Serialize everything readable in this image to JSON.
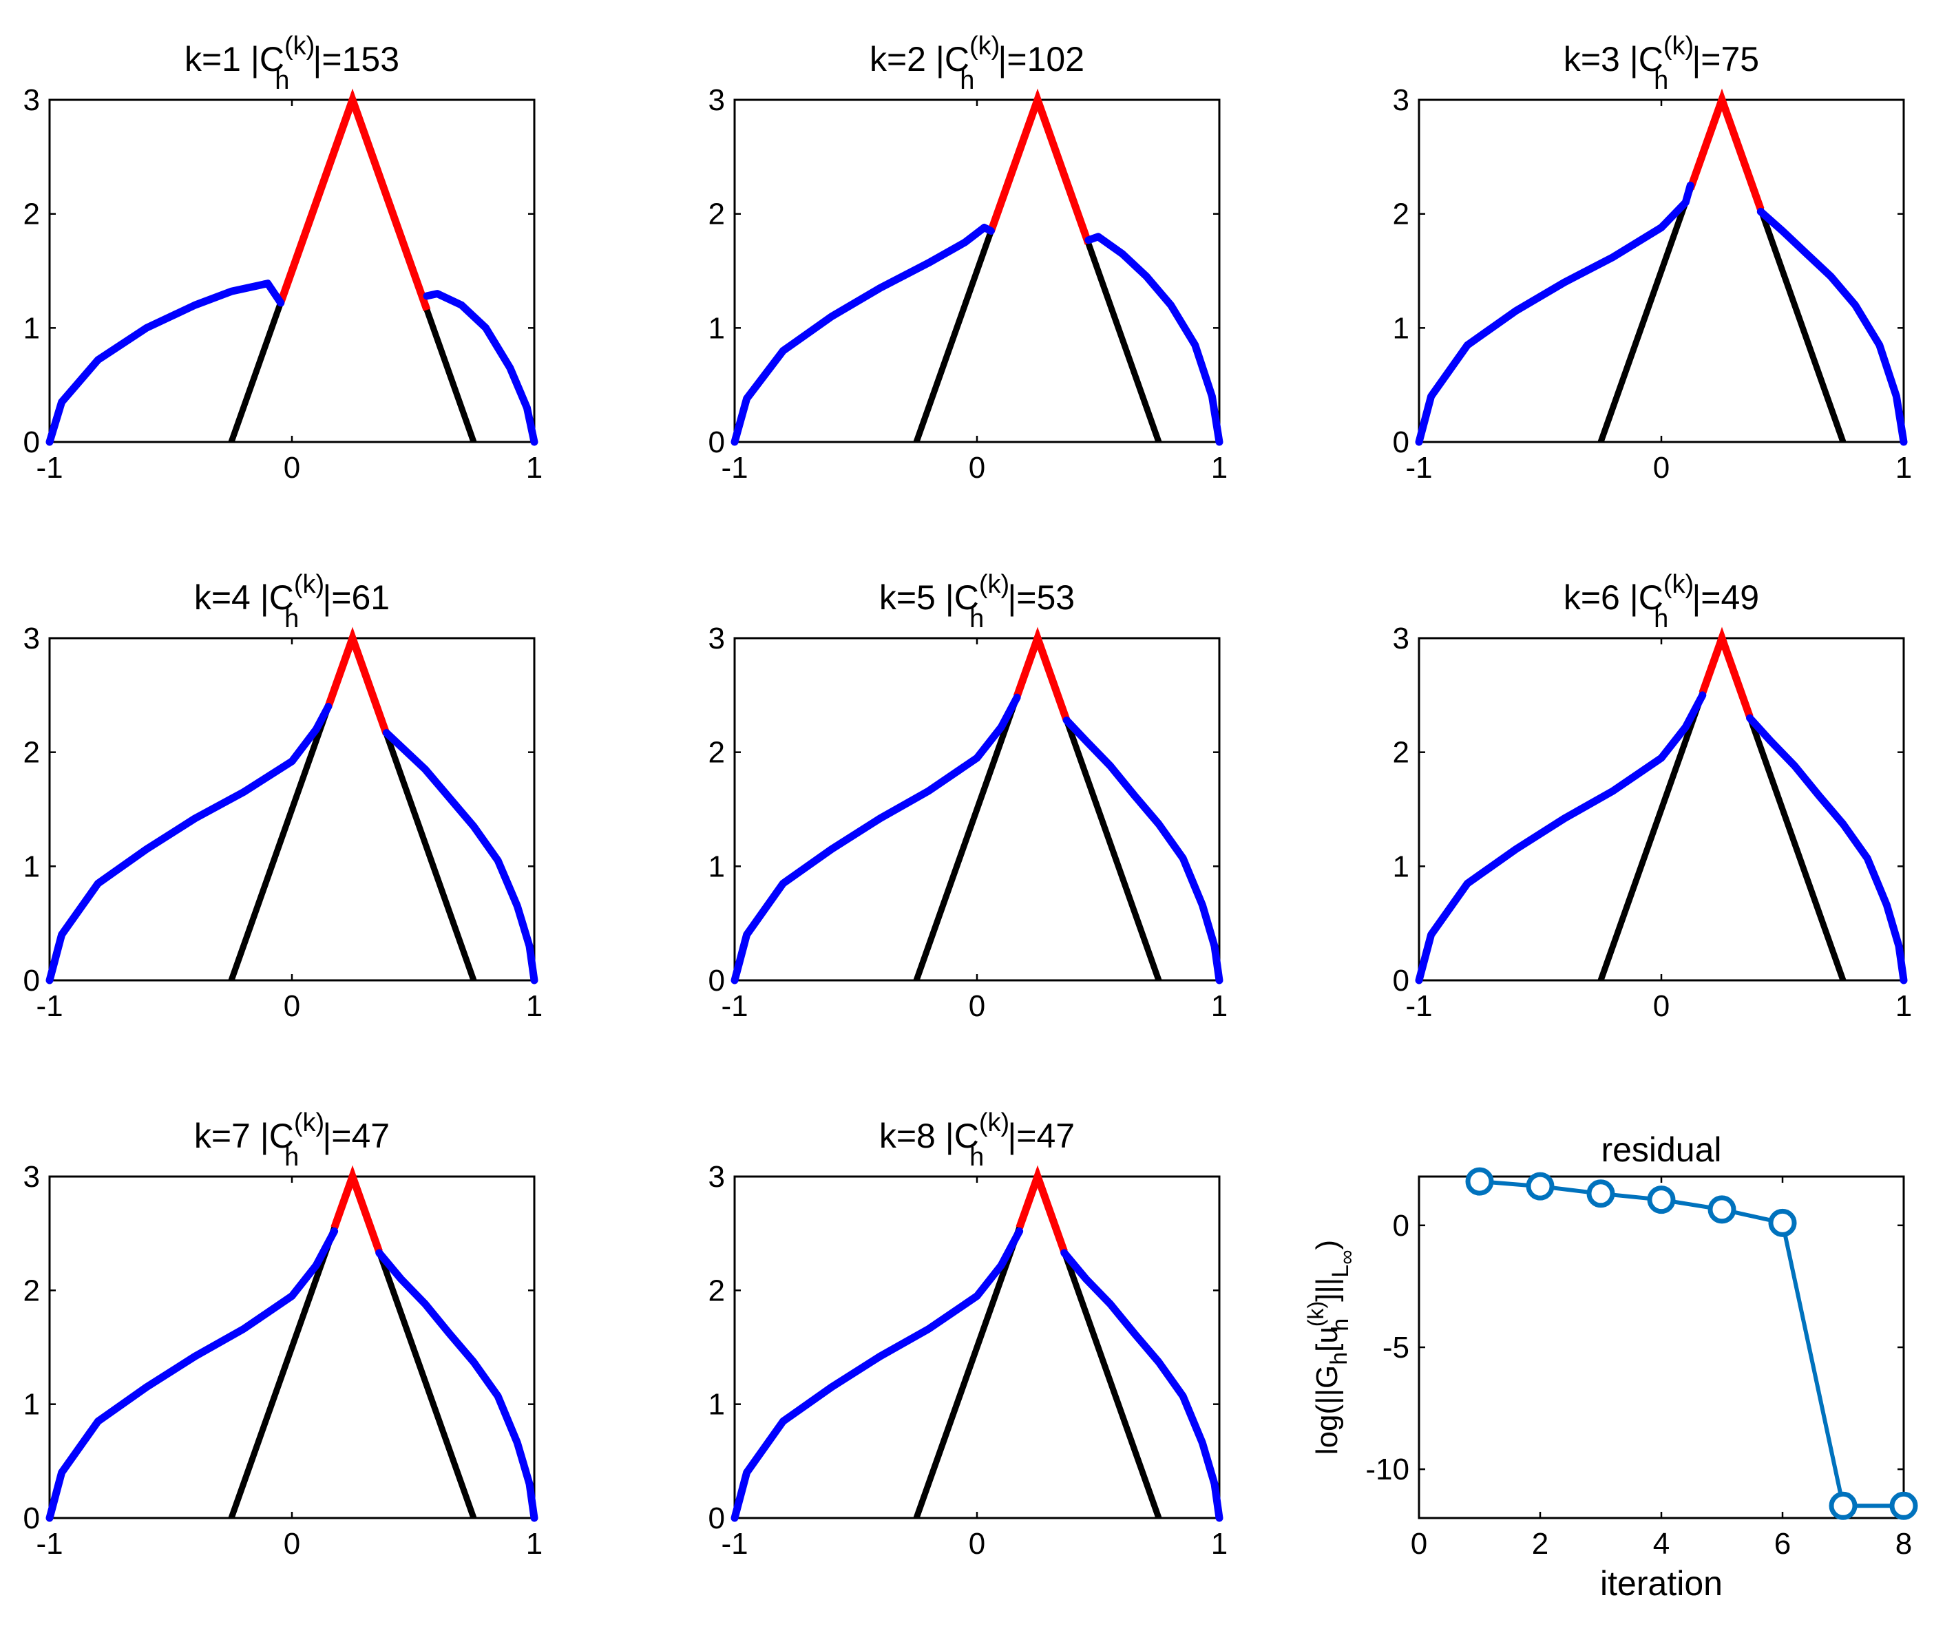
{
  "colors": {
    "obstacle": "#000000",
    "contact": "#ff0000",
    "free": "#0000ff",
    "residual": "#0072bd",
    "axes": "#000000",
    "background": "#ffffff"
  },
  "chart_data": [
    {
      "type": "line",
      "k": 1,
      "title": "k=1  |C_h^(k)|=153",
      "title_parts": {
        "prefix": "k=1  |C",
        "sub": "h",
        "sup": "(k)",
        "suffix": "|=153"
      },
      "xlim": [
        -1,
        1
      ],
      "ylim": [
        0,
        3
      ],
      "xticks": [
        -1,
        0,
        1
      ],
      "yticks": [
        0,
        1,
        2,
        3
      ],
      "xtick_labels": [
        "-1",
        "0",
        "1"
      ],
      "ytick_labels": [
        "0",
        "1",
        "2",
        "3"
      ],
      "obstacle": {
        "x": [
          -0.25,
          0.25,
          0.75
        ],
        "y": [
          0,
          3,
          0
        ]
      },
      "contact_set": {
        "x_start": -0.046,
        "x_end": 0.557
      },
      "free_left": {
        "x": [
          -1,
          -0.95,
          -0.8,
          -0.6,
          -0.4,
          -0.25,
          -0.1,
          -0.046
        ],
        "y": [
          0,
          0.35,
          0.72,
          1.0,
          1.2,
          1.32,
          1.39,
          1.22
        ]
      },
      "free_right": {
        "x": [
          0.557,
          0.6,
          0.7,
          0.8,
          0.9,
          0.97,
          1
        ],
        "y": [
          1.28,
          1.3,
          1.2,
          1.0,
          0.65,
          0.3,
          0
        ]
      }
    },
    {
      "type": "line",
      "k": 2,
      "title": "k=2  |C_h^(k)|=102",
      "title_parts": {
        "prefix": "k=2  |C",
        "sub": "h",
        "sup": "(k)",
        "suffix": "|=102"
      },
      "xlim": [
        -1,
        1
      ],
      "ylim": [
        0,
        3
      ],
      "xticks": [
        -1,
        0,
        1
      ],
      "yticks": [
        0,
        1,
        2,
        3
      ],
      "xtick_labels": [
        "-1",
        "0",
        "1"
      ],
      "ytick_labels": [
        "0",
        "1",
        "2",
        "3"
      ],
      "obstacle": {
        "x": [
          -0.25,
          0.25,
          0.75
        ],
        "y": [
          0,
          3,
          0
        ]
      },
      "contact_set": {
        "x_start": 0.058,
        "x_end": 0.46
      },
      "free_left": {
        "x": [
          -1,
          -0.95,
          -0.8,
          -0.6,
          -0.4,
          -0.2,
          -0.05,
          0.03,
          0.058
        ],
        "y": [
          0,
          0.38,
          0.8,
          1.1,
          1.35,
          1.57,
          1.75,
          1.88,
          1.85
        ]
      },
      "free_right": {
        "x": [
          0.46,
          0.5,
          0.6,
          0.7,
          0.8,
          0.9,
          0.97,
          1
        ],
        "y": [
          1.77,
          1.8,
          1.65,
          1.45,
          1.2,
          0.85,
          0.4,
          0
        ]
      }
    },
    {
      "type": "line",
      "k": 3,
      "title": "k=3  |C_h^(k)|=75",
      "title_parts": {
        "prefix": "k=3  |C",
        "sub": "h",
        "sup": "(k)",
        "suffix": "|=75"
      },
      "xlim": [
        -1,
        1
      ],
      "ylim": [
        0,
        3
      ],
      "xticks": [
        -1,
        0,
        1
      ],
      "yticks": [
        0,
        1,
        2,
        3
      ],
      "xtick_labels": [
        "-1",
        "0",
        "1"
      ],
      "ytick_labels": [
        "0",
        "1",
        "2",
        "3"
      ],
      "obstacle": {
        "x": [
          -0.25,
          0.25,
          0.75
        ],
        "y": [
          0,
          3,
          0
        ]
      },
      "contact_set": {
        "x_start": 0.12,
        "x_end": 0.41
      },
      "free_left": {
        "x": [
          -1,
          -0.95,
          -0.8,
          -0.6,
          -0.4,
          -0.2,
          0,
          0.1,
          0.12
        ],
        "y": [
          0,
          0.4,
          0.85,
          1.15,
          1.4,
          1.62,
          1.88,
          2.1,
          2.25
        ]
      },
      "free_right": {
        "x": [
          0.41,
          0.5,
          0.6,
          0.7,
          0.8,
          0.9,
          0.97,
          1
        ],
        "y": [
          2.02,
          1.85,
          1.65,
          1.45,
          1.2,
          0.85,
          0.4,
          0
        ]
      }
    },
    {
      "type": "line",
      "k": 4,
      "title": "k=4  |C_h^(k)|=61",
      "title_parts": {
        "prefix": "k=4  |C",
        "sub": "h",
        "sup": "(k)",
        "suffix": "|=61"
      },
      "xlim": [
        -1,
        1
      ],
      "ylim": [
        0,
        3
      ],
      "xticks": [
        -1,
        0,
        1
      ],
      "yticks": [
        0,
        1,
        2,
        3
      ],
      "xtick_labels": [
        "-1",
        "0",
        "1"
      ],
      "ytick_labels": [
        "0",
        "1",
        "2",
        "3"
      ],
      "obstacle": {
        "x": [
          -0.25,
          0.25,
          0.75
        ],
        "y": [
          0,
          3,
          0
        ]
      },
      "contact_set": {
        "x_start": 0.15,
        "x_end": 0.39
      },
      "free_left": {
        "x": [
          -1,
          -0.95,
          -0.8,
          -0.6,
          -0.4,
          -0.2,
          0,
          0.1,
          0.15
        ],
        "y": [
          0,
          0.4,
          0.85,
          1.15,
          1.42,
          1.65,
          1.92,
          2.2,
          2.4
        ]
      },
      "free_right": {
        "x": [
          0.39,
          0.45,
          0.55,
          0.65,
          0.75,
          0.85,
          0.93,
          0.98,
          1
        ],
        "y": [
          2.17,
          2.05,
          1.85,
          1.6,
          1.35,
          1.05,
          0.65,
          0.3,
          0
        ]
      }
    },
    {
      "type": "line",
      "k": 5,
      "title": "k=5  |C_h^(k)|=53",
      "title_parts": {
        "prefix": "k=5  |C",
        "sub": "h",
        "sup": "(k)",
        "suffix": "|=53"
      },
      "xlim": [
        -1,
        1
      ],
      "ylim": [
        0,
        3
      ],
      "xticks": [
        -1,
        0,
        1
      ],
      "yticks": [
        0,
        1,
        2,
        3
      ],
      "xtick_labels": [
        "-1",
        "0",
        "1"
      ],
      "ytick_labels": [
        "0",
        "1",
        "2",
        "3"
      ],
      "obstacle": {
        "x": [
          -0.25,
          0.25,
          0.75
        ],
        "y": [
          0,
          3,
          0
        ]
      },
      "contact_set": {
        "x_start": 0.165,
        "x_end": 0.37
      },
      "free_left": {
        "x": [
          -1,
          -0.95,
          -0.8,
          -0.6,
          -0.4,
          -0.2,
          0,
          0.1,
          0.165
        ],
        "y": [
          0,
          0.4,
          0.85,
          1.15,
          1.42,
          1.66,
          1.95,
          2.22,
          2.48
        ]
      },
      "free_right": {
        "x": [
          0.37,
          0.45,
          0.55,
          0.65,
          0.75,
          0.85,
          0.93,
          0.98,
          1
        ],
        "y": [
          2.28,
          2.1,
          1.88,
          1.62,
          1.37,
          1.07,
          0.66,
          0.3,
          0
        ]
      }
    },
    {
      "type": "line",
      "k": 6,
      "title": "k=6  |C_h^(k)|=49",
      "title_parts": {
        "prefix": "k=6  |C",
        "sub": "h",
        "sup": "(k)",
        "suffix": "|=49"
      },
      "xlim": [
        -1,
        1
      ],
      "ylim": [
        0,
        3
      ],
      "xticks": [
        -1,
        0,
        1
      ],
      "yticks": [
        0,
        1,
        2,
        3
      ],
      "xtick_labels": [
        "-1",
        "0",
        "1"
      ],
      "ytick_labels": [
        "0",
        "1",
        "2",
        "3"
      ],
      "obstacle": {
        "x": [
          -0.25,
          0.25,
          0.75
        ],
        "y": [
          0,
          3,
          0
        ]
      },
      "contact_set": {
        "x_start": 0.17,
        "x_end": 0.365
      },
      "free_left": {
        "x": [
          -1,
          -0.95,
          -0.8,
          -0.6,
          -0.4,
          -0.2,
          0,
          0.1,
          0.17
        ],
        "y": [
          0,
          0.4,
          0.85,
          1.15,
          1.42,
          1.66,
          1.95,
          2.22,
          2.5
        ]
      },
      "free_right": {
        "x": [
          0.365,
          0.45,
          0.55,
          0.65,
          0.75,
          0.85,
          0.93,
          0.98,
          1
        ],
        "y": [
          2.3,
          2.1,
          1.88,
          1.62,
          1.37,
          1.07,
          0.66,
          0.3,
          0
        ]
      }
    },
    {
      "type": "line",
      "k": 7,
      "title": "k=7  |C_h^(k)|=47",
      "title_parts": {
        "prefix": "k=7  |C",
        "sub": "h",
        "sup": "(k)",
        "suffix": "|=47"
      },
      "xlim": [
        -1,
        1
      ],
      "ylim": [
        0,
        3
      ],
      "xticks": [
        -1,
        0,
        1
      ],
      "yticks": [
        0,
        1,
        2,
        3
      ],
      "xtick_labels": [
        "-1",
        "0",
        "1"
      ],
      "ytick_labels": [
        "0",
        "1",
        "2",
        "3"
      ],
      "obstacle": {
        "x": [
          -0.25,
          0.25,
          0.75
        ],
        "y": [
          0,
          3,
          0
        ]
      },
      "contact_set": {
        "x_start": 0.175,
        "x_end": 0.36
      },
      "free_left": {
        "x": [
          -1,
          -0.95,
          -0.8,
          -0.6,
          -0.4,
          -0.2,
          0,
          0.1,
          0.175
        ],
        "y": [
          0,
          0.4,
          0.85,
          1.15,
          1.42,
          1.66,
          1.95,
          2.22,
          2.52
        ]
      },
      "free_right": {
        "x": [
          0.36,
          0.45,
          0.55,
          0.65,
          0.75,
          0.85,
          0.93,
          0.98,
          1
        ],
        "y": [
          2.33,
          2.1,
          1.88,
          1.62,
          1.37,
          1.07,
          0.66,
          0.3,
          0
        ]
      }
    },
    {
      "type": "line",
      "k": 8,
      "title": "k=8  |C_h^(k)|=47",
      "title_parts": {
        "prefix": "k=8  |C",
        "sub": "h",
        "sup": "(k)",
        "suffix": "|=47"
      },
      "xlim": [
        -1,
        1
      ],
      "ylim": [
        0,
        3
      ],
      "xticks": [
        -1,
        0,
        1
      ],
      "yticks": [
        0,
        1,
        2,
        3
      ],
      "xtick_labels": [
        "-1",
        "0",
        "1"
      ],
      "ytick_labels": [
        "0",
        "1",
        "2",
        "3"
      ],
      "obstacle": {
        "x": [
          -0.25,
          0.25,
          0.75
        ],
        "y": [
          0,
          3,
          0
        ]
      },
      "contact_set": {
        "x_start": 0.175,
        "x_end": 0.36
      },
      "free_left": {
        "x": [
          -1,
          -0.95,
          -0.8,
          -0.6,
          -0.4,
          -0.2,
          0,
          0.1,
          0.175
        ],
        "y": [
          0,
          0.4,
          0.85,
          1.15,
          1.42,
          1.66,
          1.95,
          2.22,
          2.52
        ]
      },
      "free_right": {
        "x": [
          0.36,
          0.45,
          0.55,
          0.65,
          0.75,
          0.85,
          0.93,
          0.98,
          1
        ],
        "y": [
          2.33,
          2.1,
          1.88,
          1.62,
          1.37,
          1.07,
          0.66,
          0.3,
          0
        ]
      }
    },
    {
      "type": "line",
      "title": "residual",
      "xlabel": "iteration",
      "ylabel": "log(||G_h[u_h^(k)]||_L∞)",
      "ylabel_parts": {
        "p1": "log(||G",
        "s1": "h",
        "p2": "[u",
        "s2": "h",
        "sup2": "(k)",
        "p3": "]||",
        "s3": "L",
        "ss3": "∞",
        "p4": ")"
      },
      "xlim": [
        0,
        8
      ],
      "ylim": [
        -12,
        2
      ],
      "xticks": [
        0,
        2,
        4,
        6,
        8
      ],
      "yticks": [
        -10,
        -5,
        0
      ],
      "xtick_labels": [
        "0",
        "2",
        "4",
        "6",
        "8"
      ],
      "ytick_labels": [
        "-10",
        "-5",
        "0"
      ],
      "series": [
        {
          "name": "residual",
          "x": [
            1,
            2,
            3,
            4,
            5,
            6,
            7,
            8
          ],
          "y": [
            1.8,
            1.6,
            1.3,
            1.05,
            0.65,
            0.1,
            -11.5,
            -11.5
          ]
        }
      ]
    }
  ]
}
